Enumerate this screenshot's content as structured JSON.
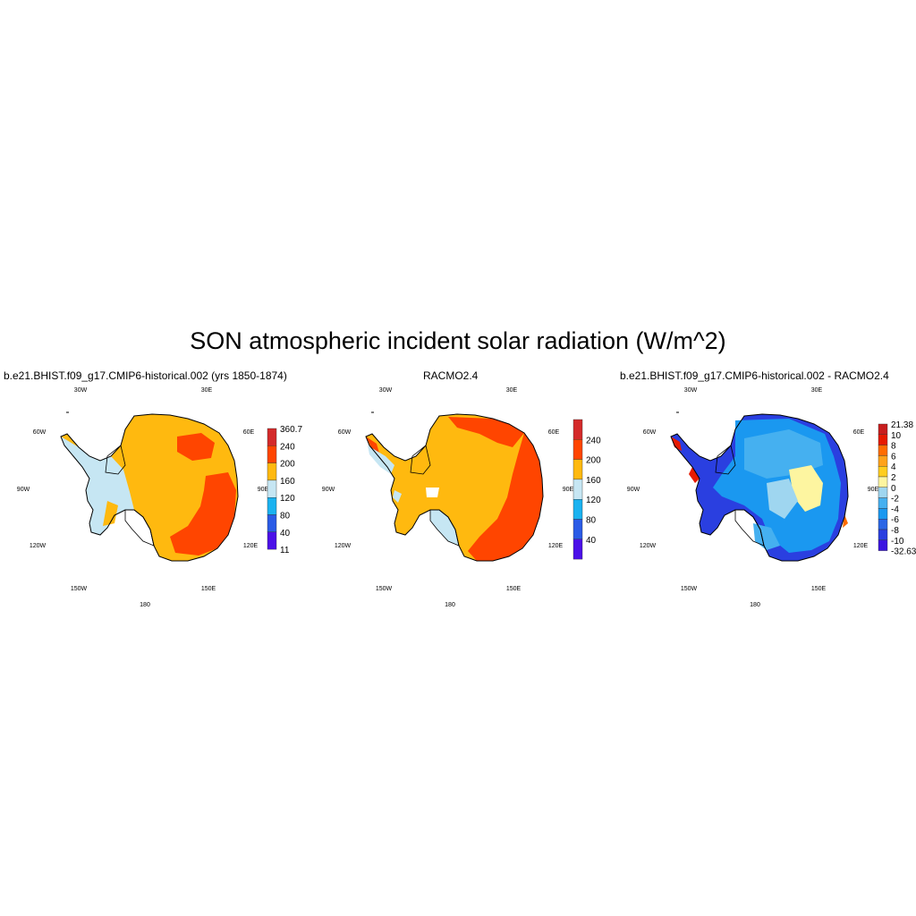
{
  "figure_title": "SON atmospheric incident solar radiation (W/m^2)",
  "colors": {
    "coastline": "#000000",
    "bins": [
      "#4b10e8",
      "#2a5be6",
      "#1ab2f0",
      "#c6e6f3",
      "#ffb90f",
      "#ff4500",
      "#d42a2a"
    ],
    "diff_bins": [
      "#3b14e0",
      "#2a3fe0",
      "#2a66e6",
      "#1a98f0",
      "#45b0f0",
      "#9fd6f0",
      "#fdf5a0",
      "#ffcd1e",
      "#ffa21a",
      "#ff6c00",
      "#e61a00",
      "#c81e1e"
    ]
  },
  "lon_labels": [
    "30W",
    "30E",
    "60W",
    "60E",
    "90W",
    "90E",
    "120W",
    "120E",
    "150W",
    "150E",
    "180"
  ],
  "chart_data": [
    {
      "type": "heatmap",
      "title": "b.e21.BHIST.f09_g17.CMIP6-historical.002 (yrs 1850-1874)",
      "units": "W/m^2",
      "colorbar_levels": [
        "360.7",
        "240",
        "200",
        "160",
        "120",
        "80",
        "40",
        "11"
      ],
      "colorbar_min": 11,
      "colorbar_max": 360.7
    },
    {
      "type": "heatmap",
      "title": "RACMO2.4",
      "units": "W/m^2",
      "colorbar_levels": [
        "240",
        "200",
        "160",
        "120",
        "80",
        "40"
      ]
    },
    {
      "type": "heatmap",
      "title": "b.e21.BHIST.f09_g17.CMIP6-historical.002 - RACMO2.4",
      "units": "W/m^2",
      "colorbar_levels": [
        "21.38",
        "10",
        "8",
        "6",
        "4",
        "2",
        "0",
        "-2",
        "-4",
        "-6",
        "-8",
        "-10",
        "-32.63"
      ],
      "colorbar_min": -32.63,
      "colorbar_max": 21.38
    }
  ]
}
